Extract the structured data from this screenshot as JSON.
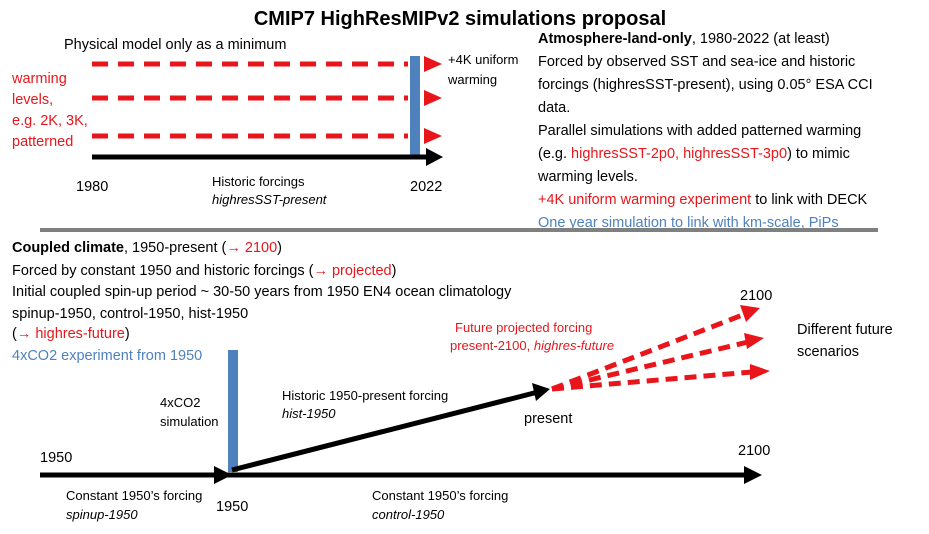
{
  "title": "CMIP7 HighResMIPv2 simulations proposal",
  "colors": {
    "red": "#e8161b",
    "blue": "#4f81bd",
    "black": "#000000",
    "grey": "#808080"
  },
  "top": {
    "physical_note": "Physical model only as a minimum",
    "warming_levels_lines": [
      "warming",
      "levels,",
      "e.g. 2K, 3K,",
      "patterned"
    ],
    "uniform_lines": [
      "+4K uniform",
      "warming"
    ],
    "year_start": "1980",
    "year_end": "2022",
    "forcing_label": "Historic forcings",
    "forcing_exp": "highresSST-present",
    "desc": {
      "l1_bold": "Atmosphere-land-only",
      "l1_rest": ", 1980-2022 (at least)",
      "l2": "Forced by observed SST and sea-ice and historic",
      "l3": "forcings (highresSST-present), using 0.05° ESA CCI",
      "l4": "data.",
      "l5": "Parallel simulations with added patterned warming",
      "l6_a": "(e.g. ",
      "l6_red": "highresSST-2p0, highresSST-3p0",
      "l6_b": ") to mimic",
      "l7": "warming levels.",
      "l8_red": "+4K uniform warming experiment",
      "l8_rest": " to link with DECK",
      "l9_blue": "One year simulation to link with km-scale, PiPs"
    }
  },
  "bottom": {
    "desc": {
      "l1_bold": "Coupled climate",
      "l1_rest": ", 1950-present (",
      "l1_red": "→ 2100",
      "l1_end": ")",
      "l2_a": "Forced by constant 1950 and historic forcings (",
      "l2_red": "→ projected",
      "l2_end": ")",
      "l3": "Initial coupled spin-up period ~ 30-50 years from 1950 EN4 ocean climatology",
      "l4": "spinup-1950, control-1950, hist-1950",
      "l5_a": "(",
      "l5_red": "→ highres-future",
      "l5_end": ")",
      "l6_blue": "4xCO2 experiment from 1950"
    },
    "sim4x_lines": [
      "4xCO2",
      "simulation"
    ],
    "hist_label": "Historic 1950-present forcing",
    "hist_exp": "hist-1950",
    "present": "present",
    "future_label": "Future projected forcing",
    "future_exp_a": "present-2100, ",
    "future_exp_b": "highres-future",
    "year_2100_top": "2100",
    "scenarios_lines": [
      "Different future",
      "scenarios"
    ],
    "year_1950_left": "1950",
    "year_1950_mid": "1950",
    "year_2100_axis": "2100",
    "spinup_label": "Constant 1950’s forcing",
    "spinup_exp": "spinup-1950",
    "control_label": "Constant 1950’s forcing",
    "control_exp": "control-1950"
  }
}
